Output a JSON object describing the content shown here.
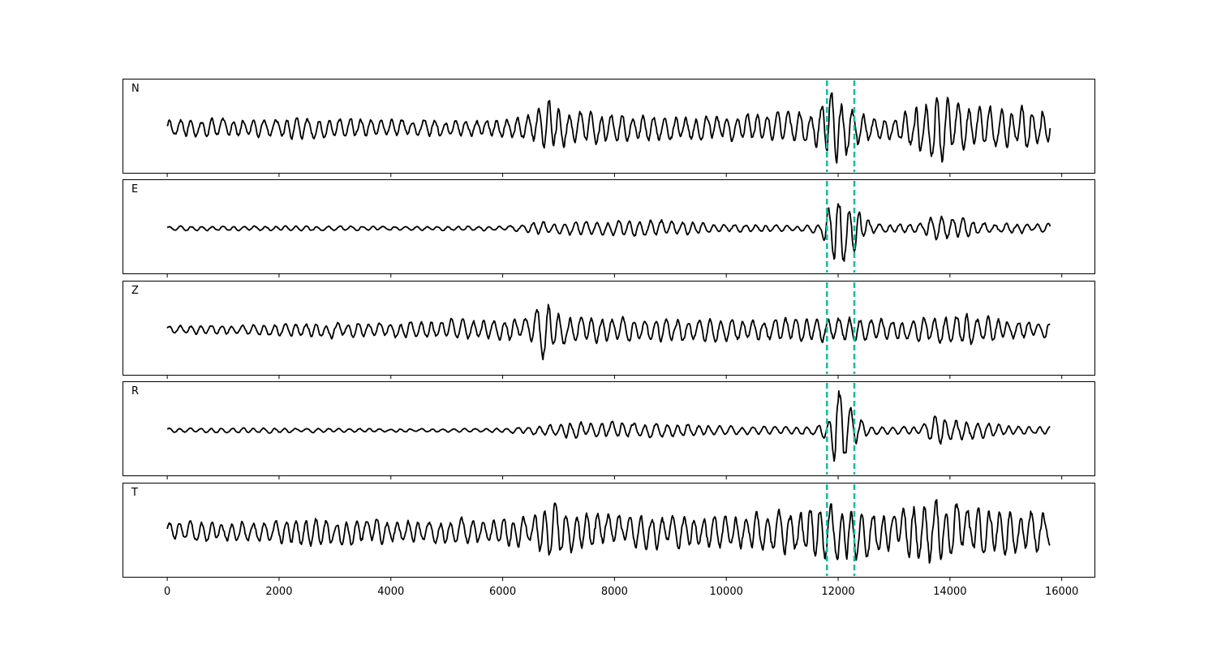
{
  "chart_data": {
    "type": "line",
    "title": "",
    "xlabel": "",
    "ylabel": "",
    "xlim": [
      -800,
      16600
    ],
    "x_ticks": [
      0,
      2000,
      4000,
      6000,
      8000,
      10000,
      12000,
      14000,
      16000
    ],
    "x_tick_labels": [
      "0",
      "2000",
      "4000",
      "6000",
      "8000",
      "10000",
      "12000",
      "14000",
      "16000"
    ],
    "y_ticks_shown": false,
    "grid": false,
    "legend": "none",
    "line_color": "#000000",
    "marker_color": "#1abc9c",
    "markers": [
      {
        "x": 11800,
        "style": "dashed"
      },
      {
        "x": 12290,
        "style": "dashed"
      }
    ],
    "sample_range": [
      0,
      15800
    ],
    "panels": [
      {
        "label": "N",
        "amplitude_envelope": [
          [
            0,
            0.22
          ],
          [
            1800,
            0.24
          ],
          [
            2400,
            0.28
          ],
          [
            3600,
            0.22
          ],
          [
            5200,
            0.2
          ],
          [
            6500,
            0.3
          ],
          [
            6800,
            0.7
          ],
          [
            7000,
            0.45
          ],
          [
            8000,
            0.35
          ],
          [
            10000,
            0.3
          ],
          [
            11500,
            0.4
          ],
          [
            11900,
            0.95
          ],
          [
            12200,
            0.6
          ],
          [
            12600,
            0.3
          ],
          [
            13000,
            0.25
          ],
          [
            13700,
            0.9
          ],
          [
            14200,
            0.55
          ],
          [
            15000,
            0.45
          ],
          [
            15500,
            0.55
          ],
          [
            15800,
            0.5
          ]
        ]
      },
      {
        "label": "E",
        "amplitude_envelope": [
          [
            0,
            0.06
          ],
          [
            2000,
            0.06
          ],
          [
            4000,
            0.05
          ],
          [
            6000,
            0.06
          ],
          [
            6600,
            0.15
          ],
          [
            7000,
            0.15
          ],
          [
            8800,
            0.2
          ],
          [
            10000,
            0.1
          ],
          [
            11400,
            0.08
          ],
          [
            11700,
            0.15
          ],
          [
            11950,
            0.95
          ],
          [
            12150,
            0.8
          ],
          [
            12300,
            0.5
          ],
          [
            12600,
            0.12
          ],
          [
            13500,
            0.12
          ],
          [
            13700,
            0.35
          ],
          [
            14000,
            0.3
          ],
          [
            14600,
            0.15
          ],
          [
            15800,
            0.1
          ]
        ]
      },
      {
        "label": "Z",
        "amplitude_envelope": [
          [
            0,
            0.1
          ],
          [
            2000,
            0.15
          ],
          [
            3000,
            0.2
          ],
          [
            4000,
            0.18
          ],
          [
            6500,
            0.3
          ],
          [
            6700,
            0.98
          ],
          [
            6900,
            0.5
          ],
          [
            7500,
            0.3
          ],
          [
            9000,
            0.3
          ],
          [
            10500,
            0.28
          ],
          [
            11800,
            0.3
          ],
          [
            12300,
            0.3
          ],
          [
            13000,
            0.25
          ],
          [
            14000,
            0.35
          ],
          [
            14300,
            0.4
          ],
          [
            15000,
            0.25
          ],
          [
            15800,
            0.2
          ]
        ]
      },
      {
        "label": "R",
        "amplitude_envelope": [
          [
            0,
            0.06
          ],
          [
            2000,
            0.06
          ],
          [
            4000,
            0.04
          ],
          [
            6000,
            0.05
          ],
          [
            6600,
            0.12
          ],
          [
            7200,
            0.2
          ],
          [
            8800,
            0.2
          ],
          [
            10000,
            0.1
          ],
          [
            11500,
            0.1
          ],
          [
            11800,
            0.2
          ],
          [
            11950,
            0.98
          ],
          [
            12100,
            0.85
          ],
          [
            12300,
            0.4
          ],
          [
            12600,
            0.1
          ],
          [
            13500,
            0.1
          ],
          [
            13700,
            0.35
          ],
          [
            14000,
            0.3
          ],
          [
            15000,
            0.12
          ],
          [
            15800,
            0.1
          ]
        ]
      },
      {
        "label": "T",
        "amplitude_envelope": [
          [
            0,
            0.25
          ],
          [
            1500,
            0.25
          ],
          [
            2500,
            0.35
          ],
          [
            4000,
            0.28
          ],
          [
            5200,
            0.3
          ],
          [
            6500,
            0.35
          ],
          [
            6900,
            0.75
          ],
          [
            7300,
            0.5
          ],
          [
            8000,
            0.4
          ],
          [
            10000,
            0.4
          ],
          [
            11000,
            0.5
          ],
          [
            11900,
            0.7
          ],
          [
            12300,
            0.65
          ],
          [
            13000,
            0.45
          ],
          [
            13700,
            0.9
          ],
          [
            14300,
            0.6
          ],
          [
            15000,
            0.55
          ],
          [
            15600,
            0.55
          ],
          [
            15800,
            0.4
          ]
        ]
      }
    ]
  }
}
